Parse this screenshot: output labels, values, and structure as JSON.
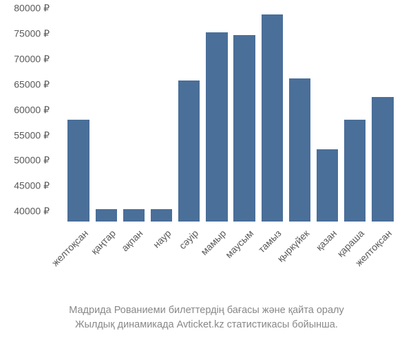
{
  "chart": {
    "type": "bar",
    "background_color": "#ffffff",
    "bar_color": "#4a6f99",
    "axis_text_color": "#595959",
    "axis_fontsize": 14,
    "bar_width": 0.78,
    "y_axis": {
      "min": 38000,
      "max": 80000,
      "tick_step": 5000,
      "ticks": [
        40000,
        45000,
        50000,
        55000,
        60000,
        65000,
        70000,
        75000,
        80000
      ],
      "tick_labels": [
        "40000 ₽",
        "45000 ₽",
        "50000 ₽",
        "55000 ₽",
        "60000 ₽",
        "65000 ₽",
        "70000 ₽",
        "75000 ₽",
        "80000 ₽"
      ],
      "currency_symbol": "₽"
    },
    "categories": [
      "желтоқсан",
      "қаңтар",
      "ақпан",
      "наур",
      "сәуір",
      "мамыр",
      "маусым",
      "тамыз",
      "қыркүйек",
      "қазан",
      "қараша",
      "желтоқсан"
    ],
    "values": [
      58000,
      40500,
      40400,
      40500,
      65800,
      75200,
      74700,
      78800,
      66200,
      52200,
      58000,
      62500
    ]
  },
  "caption": {
    "line1": "Мадрида Рованиеми билеттердің бағасы және қайта оралу",
    "line2": "Жылдық динамикада Avticket.kz статистикасы бойынша.",
    "color": "#888888",
    "fontsize": 14.5
  }
}
